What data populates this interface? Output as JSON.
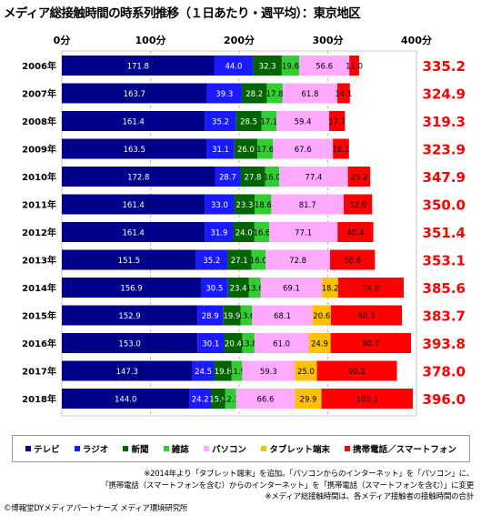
{
  "title": "メディア総接触時間の時系列推移（１日あたり・週平均）：東京地区",
  "chart_data": {
    "type": "bar",
    "stacked": true,
    "orientation": "horizontal",
    "title": "メディア総接触時間の時系列推移（１日あたり・週平均）：東京地区",
    "categories": [
      "2006年",
      "2007年",
      "2008年",
      "2009年",
      "2010年",
      "2011年",
      "2012年",
      "2013年",
      "2014年",
      "2015年",
      "2016年",
      "2017年",
      "2018年"
    ],
    "xlim": [
      0,
      400
    ],
    "ticks": [
      0,
      100,
      200,
      300,
      400
    ],
    "tick_labels": [
      "0分",
      "100分",
      "200分",
      "300分",
      "400分"
    ],
    "grid": true,
    "legend_position": "bottom",
    "series": [
      {
        "name": "テレビ",
        "color": "#00008b",
        "values": [
          171.8,
          163.7,
          161.4,
          163.5,
          172.8,
          161.4,
          161.4,
          151.5,
          156.9,
          152.9,
          153.0,
          147.3,
          144.0
        ]
      },
      {
        "name": "ラジオ",
        "color": "#1a1aff",
        "values": [
          44.0,
          39.3,
          35.2,
          31.1,
          28.7,
          33.0,
          31.9,
          35.2,
          30.5,
          28.9,
          30.1,
          24.5,
          24.2
        ]
      },
      {
        "name": "新聞",
        "color": "#006400",
        "values": [
          32.3,
          28.2,
          28.5,
          26.0,
          27.8,
          23.3,
          24.0,
          27.1,
          23.4,
          19.9,
          20.4,
          19.8,
          15.9
        ]
      },
      {
        "name": "雑誌",
        "color": "#33cc33",
        "values": [
          19.6,
          17.8,
          17.1,
          17.6,
          16.0,
          18.6,
          16.6,
          16.0,
          13.6,
          13.0,
          13.8,
          11.9,
          12.3
        ]
      },
      {
        "name": "パソコン",
        "color": "#ffaaff",
        "values": [
          56.6,
          61.8,
          59.4,
          67.6,
          77.4,
          81.7,
          77.1,
          72.8,
          69.1,
          68.1,
          61.0,
          59.3,
          66.6
        ]
      },
      {
        "name": "タブレット端末",
        "color": "#ffc000",
        "values": [
          null,
          null,
          null,
          null,
          null,
          null,
          null,
          null,
          18.2,
          20.6,
          24.9,
          25.0,
          29.9
        ]
      },
      {
        "name": "携帯電話／スマートフォン",
        "color": "#ff0000",
        "values": [
          11.0,
          14.1,
          17.7,
          18.1,
          25.2,
          32.0,
          40.4,
          50.6,
          74.0,
          80.3,
          90.7,
          90.2,
          103.1
        ]
      }
    ],
    "totals": [
      335.2,
      324.9,
      319.3,
      323.9,
      347.9,
      350.0,
      351.4,
      353.1,
      385.6,
      383.7,
      393.8,
      378.0,
      396.0
    ],
    "totals_color": "#ff0000"
  },
  "notes": [
    "※2014年より「タブレット端末」を追加。「パソコンからのインターネット」を「パソコン」に、",
    "「携帯電話（スマートフォンを含む）からのインターネット」を「携帯電話（スマートフォンを含む）」に変更",
    "※メディア総接触時間は、各メディア接触者の接触時間の合計"
  ],
  "copyright": "©博報堂DYメディアパートナーズ メディア環境研究所"
}
